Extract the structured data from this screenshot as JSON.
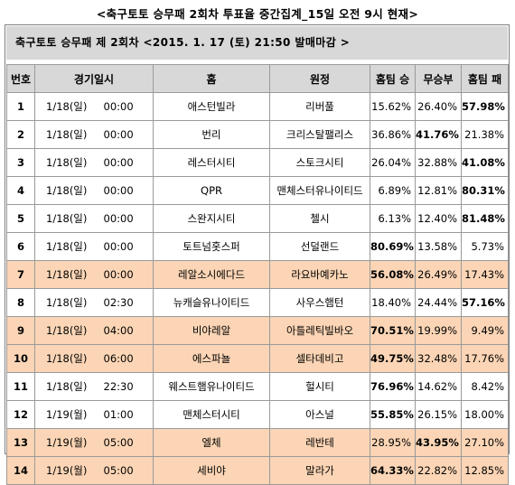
{
  "caption": "<축구토토 승무패 2회차 투표율 중간집계_15일 오전 9시 현재>",
  "subtitle": "축구토토 승무패 제 2회차 <2015. 1. 17 (토) 21:50 발매마감 >",
  "headers": {
    "no": "번호",
    "datetime": "경기일시",
    "home": "홈",
    "away": "원정",
    "home_win": "홈팀 승",
    "draw": "무승부",
    "home_loss": "홈팀 패"
  },
  "rows": [
    {
      "no": "1",
      "date": "1/18(일)",
      "time": "00:00",
      "home": "애스턴빌라",
      "away": "리버풀",
      "win": "15.62%",
      "draw": "26.40%",
      "loss": "57.98%",
      "bold": "loss",
      "highlight": false
    },
    {
      "no": "2",
      "date": "1/18(일)",
      "time": "00:00",
      "home": "번리",
      "away": "크리스탈팰리스",
      "win": "36.86%",
      "draw": "41.76%",
      "loss": "21.38%",
      "bold": "draw",
      "highlight": false
    },
    {
      "no": "3",
      "date": "1/18(일)",
      "time": "00:00",
      "home": "레스터시티",
      "away": "스토크시티",
      "win": "26.04%",
      "draw": "32.88%",
      "loss": "41.08%",
      "bold": "loss",
      "highlight": false
    },
    {
      "no": "4",
      "date": "1/18(일)",
      "time": "00:00",
      "home": "QPR",
      "away": "맨체스터유나이티드",
      "win": "6.89%",
      "draw": "12.81%",
      "loss": "80.31%",
      "bold": "loss",
      "highlight": false
    },
    {
      "no": "5",
      "date": "1/18(일)",
      "time": "00:00",
      "home": "스완지시티",
      "away": "첼시",
      "win": "6.13%",
      "draw": "12.40%",
      "loss": "81.48%",
      "bold": "loss",
      "highlight": false
    },
    {
      "no": "6",
      "date": "1/18(일)",
      "time": "00:00",
      "home": "토트넘홋스퍼",
      "away": "선덜랜드",
      "win": "80.69%",
      "draw": "13.58%",
      "loss": "5.73%",
      "bold": "win",
      "highlight": false
    },
    {
      "no": "7",
      "date": "1/18(일)",
      "time": "00:00",
      "home": "레알소시에다드",
      "away": "라요바예카노",
      "win": "56.08%",
      "draw": "26.49%",
      "loss": "17.43%",
      "bold": "win",
      "highlight": true
    },
    {
      "no": "8",
      "date": "1/18(일)",
      "time": "02:30",
      "home": "뉴캐슬유나이티드",
      "away": "사우스햄턴",
      "win": "18.40%",
      "draw": "24.44%",
      "loss": "57.16%",
      "bold": "loss",
      "highlight": false
    },
    {
      "no": "9",
      "date": "1/18(일)",
      "time": "04:00",
      "home": "비야레알",
      "away": "아틀레틱빌바오",
      "win": "70.51%",
      "draw": "19.99%",
      "loss": "9.49%",
      "bold": "win",
      "highlight": true
    },
    {
      "no": "10",
      "date": "1/18(일)",
      "time": "06:00",
      "home": "에스파뇰",
      "away": "셀타데비고",
      "win": "49.75%",
      "draw": "32.48%",
      "loss": "17.76%",
      "bold": "win",
      "highlight": true
    },
    {
      "no": "11",
      "date": "1/18(일)",
      "time": "22:30",
      "home": "웨스트햄유나이티드",
      "away": "헐시티",
      "win": "76.96%",
      "draw": "14.62%",
      "loss": "8.42%",
      "bold": "win",
      "highlight": false
    },
    {
      "no": "12",
      "date": "1/19(월)",
      "time": "01:00",
      "home": "맨체스터시티",
      "away": "아스널",
      "win": "55.85%",
      "draw": "26.15%",
      "loss": "18.00%",
      "bold": "win",
      "highlight": false
    },
    {
      "no": "13",
      "date": "1/19(월)",
      "time": "05:00",
      "home": "엘체",
      "away": "레반테",
      "win": "28.95%",
      "draw": "43.95%",
      "loss": "27.10%",
      "bold": "draw",
      "highlight": true
    },
    {
      "no": "14",
      "date": "1/19(월)",
      "time": "05:00",
      "home": "세비야",
      "away": "말라가",
      "win": "64.33%",
      "draw": "22.82%",
      "loss": "12.85%",
      "bold": "win",
      "highlight": true
    }
  ]
}
